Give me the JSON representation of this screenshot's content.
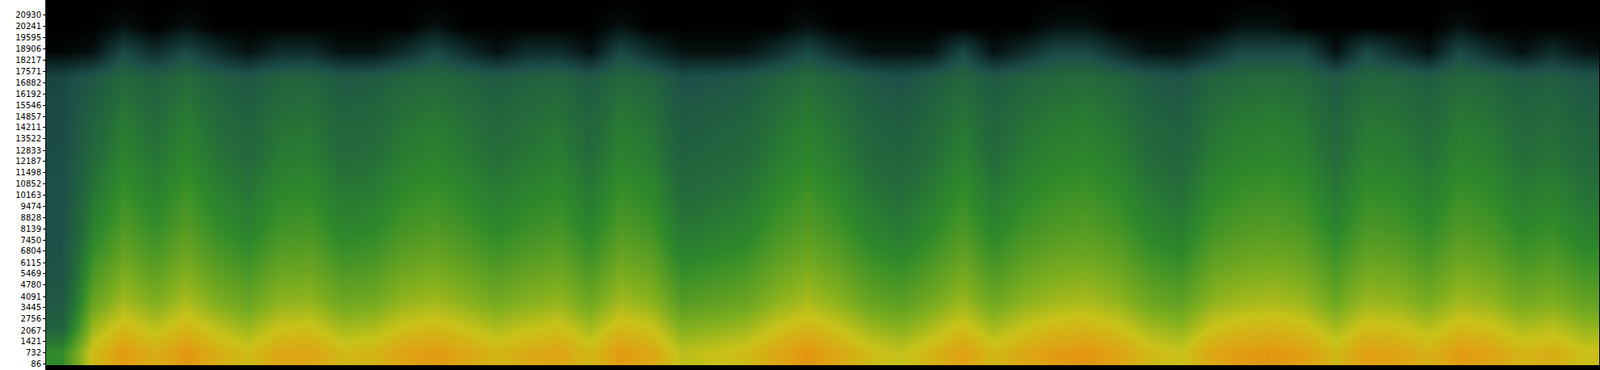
{
  "chart_data": {
    "type": "heatmap",
    "frequencies": [
      750,
      2250,
      3750,
      5250,
      6750,
      8250,
      9750,
      11250,
      12750,
      14250,
      15750,
      17250,
      18750,
      20250,
      21750
    ],
    "cells": [
      [
        55,
        40,
        35,
        33,
        32,
        31,
        30,
        30,
        29,
        28,
        28,
        26,
        2,
        0,
        0
      ],
      [
        82,
        74,
        66,
        61,
        56,
        52,
        49,
        46,
        43,
        41,
        38,
        34,
        6,
        0,
        0
      ],
      [
        91,
        83,
        75,
        70,
        65,
        61,
        58,
        55,
        52,
        50,
        47,
        43,
        28,
        6,
        0
      ],
      [
        86,
        78,
        70,
        65,
        60,
        56,
        53,
        50,
        47,
        45,
        42,
        38,
        16,
        0,
        0
      ],
      [
        92,
        84,
        76,
        71,
        66,
        62,
        59,
        56,
        53,
        51,
        48,
        44,
        28,
        6,
        0
      ],
      [
        86,
        78,
        70,
        65,
        60,
        56,
        53,
        50,
        47,
        45,
        42,
        38,
        16,
        0,
        0
      ],
      [
        82,
        74,
        66,
        61,
        56,
        52,
        49,
        46,
        43,
        41,
        38,
        34,
        6,
        0,
        0
      ],
      [
        88,
        80,
        72,
        67,
        62,
        58,
        55,
        52,
        49,
        47,
        44,
        40,
        16,
        0,
        0
      ],
      [
        89,
        81,
        73,
        68,
        63,
        59,
        56,
        53,
        50,
        48,
        45,
        41,
        16,
        0,
        0
      ],
      [
        83,
        75,
        67,
        62,
        57,
        53,
        50,
        47,
        44,
        42,
        39,
        35,
        6,
        0,
        0
      ],
      [
        84,
        76,
        68,
        63,
        58,
        54,
        51,
        48,
        45,
        43,
        40,
        36,
        6,
        0,
        0
      ],
      [
        89,
        81,
        73,
        68,
        63,
        59,
        56,
        53,
        50,
        48,
        45,
        41,
        16,
        0,
        0
      ],
      [
        91,
        83,
        75,
        70,
        65,
        61,
        58,
        55,
        52,
        50,
        47,
        43,
        28,
        6,
        0
      ],
      [
        88,
        80,
        72,
        67,
        62,
        58,
        55,
        52,
        49,
        47,
        44,
        40,
        16,
        0,
        0
      ],
      [
        84,
        76,
        68,
        63,
        58,
        54,
        51,
        48,
        45,
        43,
        40,
        36,
        6,
        0,
        0
      ],
      [
        87,
        79,
        71,
        66,
        61,
        57,
        54,
        51,
        48,
        46,
        43,
        39,
        16,
        0,
        0
      ],
      [
        89,
        81,
        73,
        68,
        63,
        59,
        56,
        53,
        50,
        48,
        45,
        41,
        16,
        0,
        0
      ],
      [
        83,
        75,
        67,
        62,
        57,
        53,
        50,
        47,
        44,
        42,
        39,
        35,
        6,
        0,
        0
      ],
      [
        91,
        83,
        75,
        70,
        65,
        61,
        58,
        55,
        52,
        50,
        47,
        43,
        28,
        6,
        0
      ],
      [
        88,
        80,
        72,
        67,
        62,
        58,
        55,
        52,
        49,
        47,
        44,
        40,
        16,
        0,
        0
      ],
      [
        78,
        70,
        62,
        57,
        52,
        48,
        45,
        42,
        39,
        37,
        34,
        30,
        6,
        0,
        0
      ],
      [
        80,
        72,
        64,
        59,
        54,
        50,
        47,
        44,
        41,
        39,
        36,
        32,
        6,
        0,
        0
      ],
      [
        82,
        74,
        66,
        61,
        56,
        52,
        49,
        46,
        43,
        41,
        38,
        34,
        6,
        0,
        0
      ],
      [
        88,
        80,
        72,
        67,
        62,
        58,
        55,
        52,
        49,
        47,
        44,
        40,
        16,
        0,
        0
      ],
      [
        92,
        84,
        76,
        71,
        66,
        62,
        59,
        56,
        53,
        51,
        48,
        44,
        28,
        6,
        0
      ],
      [
        88,
        80,
        72,
        67,
        62,
        58,
        55,
        52,
        49,
        47,
        44,
        40,
        16,
        0,
        0
      ],
      [
        82,
        74,
        66,
        61,
        56,
        52,
        49,
        46,
        43,
        41,
        38,
        34,
        6,
        0,
        0
      ],
      [
        79,
        71,
        63,
        58,
        53,
        49,
        46,
        43,
        40,
        38,
        35,
        31,
        6,
        0,
        0
      ],
      [
        84,
        76,
        68,
        63,
        58,
        54,
        51,
        48,
        45,
        43,
        40,
        36,
        6,
        0,
        0
      ],
      [
        90,
        82,
        74,
        69,
        64,
        60,
        57,
        54,
        51,
        49,
        46,
        42,
        28,
        0,
        0
      ],
      [
        83,
        75,
        67,
        62,
        57,
        53,
        50,
        47,
        44,
        42,
        39,
        35,
        6,
        0,
        0
      ],
      [
        88,
        80,
        72,
        67,
        62,
        58,
        55,
        52,
        49,
        47,
        44,
        40,
        16,
        0,
        0
      ],
      [
        91,
        83,
        75,
        70,
        65,
        61,
        58,
        55,
        52,
        50,
        47,
        43,
        28,
        6,
        0
      ],
      [
        92,
        84,
        76,
        71,
        66,
        62,
        59,
        56,
        53,
        51,
        48,
        44,
        28,
        6,
        0
      ],
      [
        89,
        81,
        73,
        68,
        63,
        59,
        56,
        53,
        50,
        48,
        45,
        41,
        16,
        0,
        0
      ],
      [
        83,
        75,
        67,
        62,
        57,
        53,
        50,
        47,
        44,
        42,
        39,
        35,
        6,
        0,
        0
      ],
      [
        80,
        72,
        64,
        59,
        54,
        50,
        47,
        44,
        41,
        39,
        36,
        32,
        6,
        0,
        0
      ],
      [
        88,
        80,
        72,
        67,
        62,
        58,
        55,
        52,
        49,
        47,
        44,
        40,
        16,
        0,
        0
      ],
      [
        91,
        83,
        75,
        70,
        65,
        61,
        58,
        55,
        52,
        50,
        47,
        43,
        28,
        6,
        0
      ],
      [
        92,
        84,
        76,
        71,
        66,
        62,
        59,
        56,
        53,
        51,
        48,
        44,
        28,
        6,
        0
      ],
      [
        90,
        82,
        74,
        69,
        64,
        60,
        57,
        54,
        51,
        49,
        46,
        42,
        28,
        0,
        0
      ],
      [
        83,
        75,
        67,
        62,
        57,
        53,
        50,
        47,
        44,
        42,
        39,
        35,
        6,
        0,
        0
      ],
      [
        90,
        82,
        74,
        69,
        64,
        60,
        57,
        54,
        51,
        49,
        46,
        42,
        28,
        0,
        0
      ],
      [
        89,
        81,
        73,
        68,
        63,
        59,
        56,
        53,
        50,
        48,
        45,
        41,
        16,
        0,
        0
      ],
      [
        85,
        77,
        69,
        64,
        59,
        55,
        52,
        49,
        46,
        44,
        41,
        37,
        6,
        0,
        0
      ],
      [
        91,
        83,
        75,
        70,
        65,
        61,
        58,
        55,
        52,
        50,
        47,
        43,
        28,
        6,
        0
      ],
      [
        89,
        81,
        73,
        68,
        63,
        59,
        56,
        53,
        50,
        48,
        45,
        41,
        16,
        0,
        0
      ],
      [
        84,
        76,
        68,
        63,
        58,
        54,
        51,
        48,
        45,
        43,
        40,
        36,
        6,
        0,
        0
      ],
      [
        86,
        78,
        70,
        65,
        60,
        56,
        53,
        50,
        47,
        45,
        42,
        38,
        16,
        0,
        0
      ],
      [
        81,
        73,
        65,
        60,
        55,
        51,
        48,
        45,
        42,
        40,
        37,
        33,
        6,
        0,
        0
      ]
    ],
    "zlim": [
      0,
      100
    ],
    "ylim": [
      -250,
      21780
    ],
    "yticks": [
      86,
      732,
      1421,
      2067,
      2756,
      3445,
      4091,
      4780,
      5469,
      6115,
      6804,
      7450,
      8139,
      8828,
      9474,
      10163,
      10852,
      11498,
      12187,
      12833,
      13522,
      14211,
      14857,
      15546,
      16192,
      16882,
      17571,
      18217,
      18906,
      19595,
      20241,
      20930
    ],
    "tick_labels": "y",
    "grid": false
  }
}
